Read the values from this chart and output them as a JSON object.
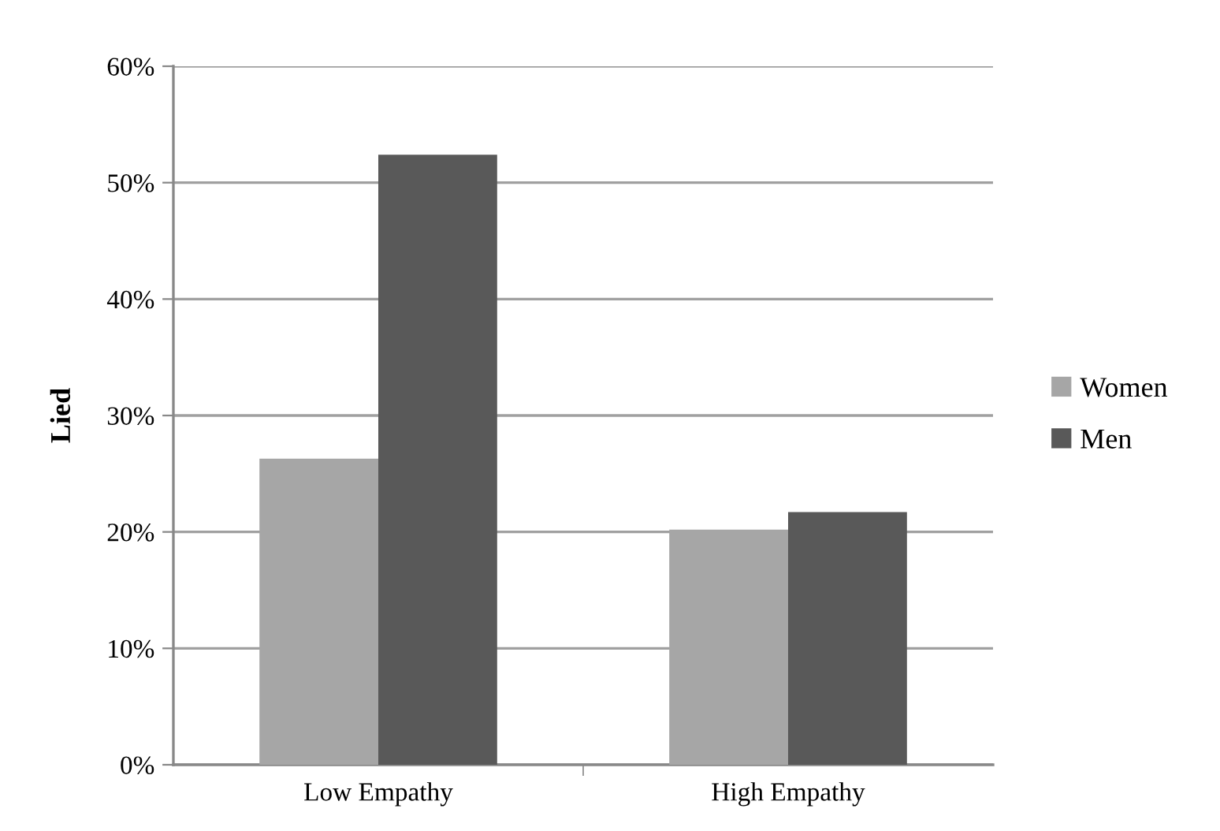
{
  "chart_data": {
    "type": "bar",
    "ylabel": "Lied",
    "categories": [
      "Low Empathy",
      "High Empathy"
    ],
    "series": [
      {
        "name": "Women",
        "color": "#a6a6a6",
        "values": [
          26.3,
          20.2
        ]
      },
      {
        "name": "Men",
        "color": "#595959",
        "values": [
          52.4,
          21.7
        ]
      }
    ],
    "ylim": [
      0,
      60
    ],
    "yticks": [
      {
        "value": 0,
        "label": "0%"
      },
      {
        "value": 10,
        "label": "10%"
      },
      {
        "value": 20,
        "label": "20%"
      },
      {
        "value": 30,
        "label": "30%"
      },
      {
        "value": 40,
        "label": "40%"
      },
      {
        "value": 50,
        "label": "50%"
      },
      {
        "value": 60,
        "label": "60%"
      }
    ],
    "grid": "y",
    "legend": "right"
  }
}
